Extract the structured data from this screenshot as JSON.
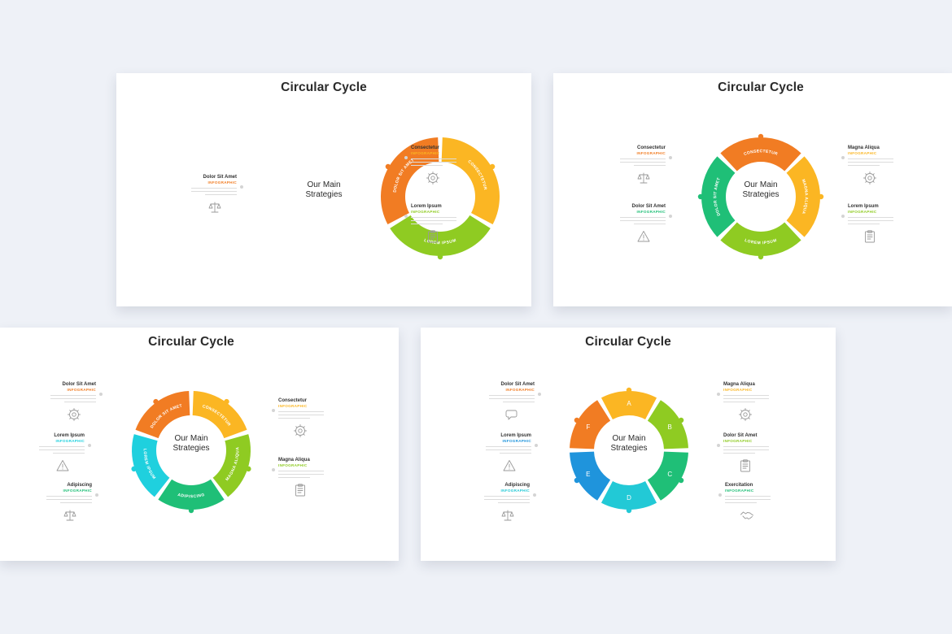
{
  "center_text": "Our Main\nStrategies",
  "colors": {
    "orange": "#f17c23",
    "yellow": "#fbb623",
    "lime": "#8fcb22",
    "green": "#1fbf77",
    "teal": "#22c9bc",
    "cyan": "#1fd0de",
    "blue": "#1f94dc"
  },
  "slides": [
    {
      "title": "Circular Cycle",
      "segments": [
        {
          "label": "CONSECTETUR",
          "color": "#fbb623"
        },
        {
          "label": "LOREM IPSUM",
          "color": "#8fcb22"
        },
        {
          "label": "DOLOR SIT AMET",
          "color": "#f17c23"
        }
      ],
      "blocks": [
        {
          "title": "Dolor Sit Amet",
          "subtitle": "INFOGRAPHIC",
          "color": "#f17c23",
          "icon": "scales-icon"
        },
        {
          "title": "Consectetur",
          "subtitle": "INFOGRAPHIC",
          "color": "#fbb623",
          "icon": "gear-icon"
        },
        {
          "title": "Lorem Ipsum",
          "subtitle": "INFOGRAPHIC",
          "color": "#8fcb22",
          "icon": "clipboard-icon"
        }
      ]
    },
    {
      "title": "Circular Cycle",
      "segments": [
        {
          "label": "CONSECTETUR",
          "color": "#f17c23"
        },
        {
          "label": "MAGNA ALIQUA",
          "color": "#fbb623"
        },
        {
          "label": "LOREM IPSUM",
          "color": "#8fcb22"
        },
        {
          "label": "DOLOR SIT AMET",
          "color": "#1fbf77"
        }
      ],
      "blocks": [
        {
          "title": "Consectetur",
          "subtitle": "INFOGRAPHIC",
          "color": "#f17c23",
          "icon": "scales-icon"
        },
        {
          "title": "Dolor Sit Amet",
          "subtitle": "INFOGRAPHIC",
          "color": "#1fbf77",
          "icon": "warning-icon"
        },
        {
          "title": "Magna Aliqua",
          "subtitle": "INFOGRAPHIC",
          "color": "#fbb623",
          "icon": "gear-icon"
        },
        {
          "title": "Lorem Ipsum",
          "subtitle": "INFOGRAPHIC",
          "color": "#8fcb22",
          "icon": "clipboard-icon"
        }
      ]
    },
    {
      "title": "Circular Cycle",
      "segments": [
        {
          "label": "CONSECTETUR",
          "color": "#fbb623"
        },
        {
          "label": "MAGNA ALIQUA",
          "color": "#8fcb22"
        },
        {
          "label": "ADIPISCING",
          "color": "#1fbf77"
        },
        {
          "label": "LOREM IPSUM",
          "color": "#1fd0de"
        },
        {
          "label": "DOLOR SIT AMET",
          "color": "#f17c23"
        }
      ],
      "blocks": [
        {
          "title": "Dolor Sit Amet",
          "subtitle": "INFOGRAPHIC",
          "color": "#f17c23",
          "icon": "gear-icon"
        },
        {
          "title": "Lorem Ipsum",
          "subtitle": "INFOGRAPHIC",
          "color": "#1fd0de",
          "icon": "warning-icon"
        },
        {
          "title": "Adipiscing",
          "subtitle": "INFOGRAPHIC",
          "color": "#1fbf77",
          "icon": "scales-icon"
        },
        {
          "title": "Consectetur",
          "subtitle": "INFOGRAPHIC",
          "color": "#fbb623",
          "icon": "gear-icon"
        },
        {
          "title": "Magna Aliqua",
          "subtitle": "INFOGRAPHIC",
          "color": "#8fcb22",
          "icon": "clipboard-icon"
        }
      ]
    },
    {
      "title": "Circular Cycle",
      "segments": [
        {
          "label": "A",
          "color": "#fbb623"
        },
        {
          "label": "B",
          "color": "#8fcb22"
        },
        {
          "label": "C",
          "color": "#1fbf77"
        },
        {
          "label": "D",
          "color": "#22c9d6"
        },
        {
          "label": "E",
          "color": "#1f94dc"
        },
        {
          "label": "F",
          "color": "#f17c23"
        }
      ],
      "blocks": [
        {
          "title": "Dolor Sit Amet",
          "subtitle": "INFOGRAPHIC",
          "color": "#f17c23",
          "icon": "chat-icon"
        },
        {
          "title": "Lorem Ipsum",
          "subtitle": "INFOGRAPHIC",
          "color": "#1f94dc",
          "icon": "warning-icon"
        },
        {
          "title": "Adipiscing",
          "subtitle": "INFOGRAPHIC",
          "color": "#22c9d6",
          "icon": "scales-icon"
        },
        {
          "title": "Magna Aliqua",
          "subtitle": "INFOGRAPHIC",
          "color": "#fbb623",
          "icon": "gear-icon"
        },
        {
          "title": "Dolor Sit Amet",
          "subtitle": "INFOGRAPHIC",
          "color": "#8fcb22",
          "icon": "clipboard-icon"
        },
        {
          "title": "Exercitation",
          "subtitle": "INFOGRAPHIC",
          "color": "#1fbf77",
          "icon": "handshake-icon"
        }
      ]
    }
  ]
}
